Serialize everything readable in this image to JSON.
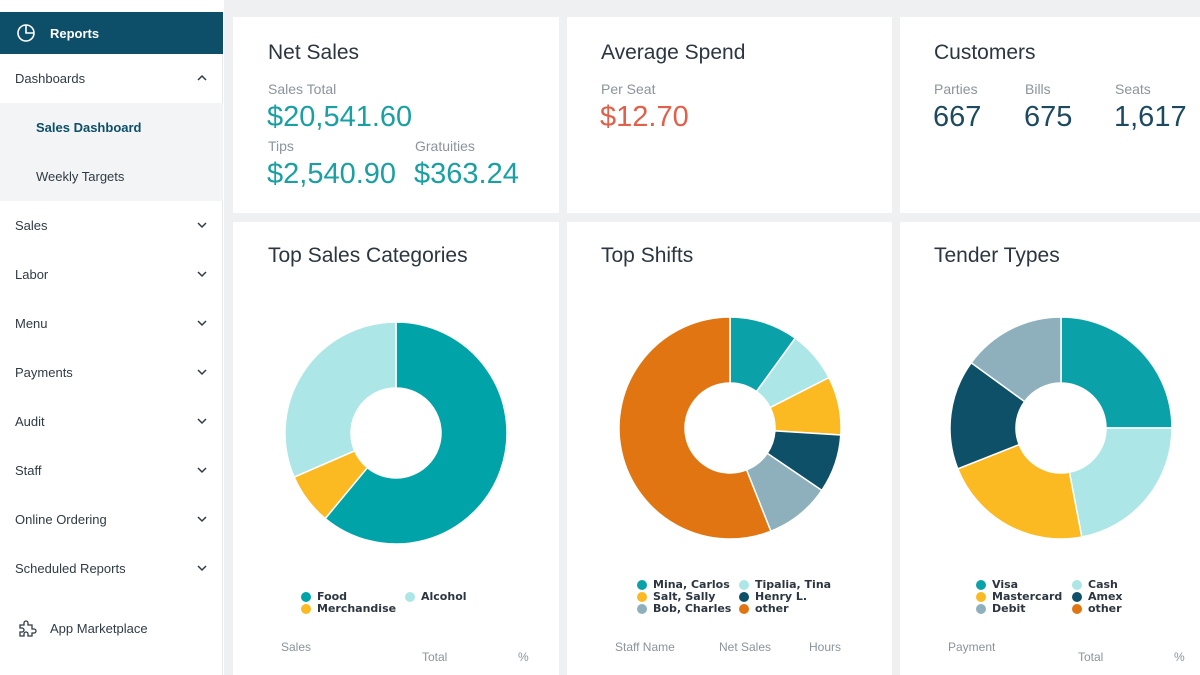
{
  "sidebar": {
    "reports_label": "Reports",
    "dashboards_label": "Dashboards",
    "sub_items": [
      "Sales Dashboard",
      "Weekly Targets"
    ],
    "items": [
      "Sales",
      "Labor",
      "Menu",
      "Payments",
      "Audit",
      "Staff",
      "Online Ordering",
      "Scheduled Reports"
    ],
    "marketplace_label": "App Marketplace"
  },
  "net_sales": {
    "title": "Net Sales",
    "sales_total_label": "Sales Total",
    "sales_total": "$20,541.60",
    "tips_label": "Tips",
    "tips": "$2,540.90",
    "gratuities_label": "Gratuities",
    "gratuities": "$363.24"
  },
  "average_spend": {
    "title": "Average Spend",
    "per_seat_label": "Per Seat",
    "per_seat": "$12.70"
  },
  "customers": {
    "title": "Customers",
    "parties_label": "Parties",
    "parties": "667",
    "bills_label": "Bills",
    "bills": "675",
    "seats_label": "Seats",
    "seats": "1,617"
  },
  "top_sales_categories": {
    "title": "Top Sales Categories",
    "table_headers": [
      "Sales",
      "Total",
      "%"
    ]
  },
  "top_shifts": {
    "title": "Top Shifts",
    "table_headers": [
      "Staff Name",
      "Net Sales",
      "Hours"
    ]
  },
  "tender_types": {
    "title": "Tender Types",
    "table_headers": [
      "Payment",
      "Total",
      "%"
    ]
  },
  "colors": {
    "brand": "#0d4f68",
    "teal": "#1aa0a3",
    "light_teal": "#ace6e6",
    "yellow": "#fbb922",
    "dark_blue": "#0d5068",
    "grey_blue": "#8eb0bd",
    "orange": "#e07512",
    "red": "#e0604a"
  },
  "chart_data": [
    {
      "type": "pie",
      "title": "Top Sales Categories",
      "categories": [
        "Food",
        "Merchandise",
        "Alcohol"
      ],
      "values": [
        61.0,
        7.5,
        31.5
      ],
      "colors": [
        "#00a3a8",
        "#fbb922",
        "#ace6e6"
      ]
    },
    {
      "type": "pie",
      "title": "Top Shifts",
      "categories": [
        "Mina, Carlos",
        "Tipalia, Tina",
        "Salt, Sally",
        "Henry L.",
        "Bob, Charles",
        "other"
      ],
      "values": [
        10.0,
        7.5,
        8.5,
        8.5,
        9.5,
        56.0
      ],
      "colors": [
        "#0aa2a8",
        "#ace6e6",
        "#fbb922",
        "#0d5068",
        "#8eb0bd",
        "#e07512"
      ]
    },
    {
      "type": "pie",
      "title": "Tender Types",
      "categories": [
        "Visa",
        "Cash",
        "Mastercard",
        "Amex",
        "Debit",
        "other"
      ],
      "values": [
        25.0,
        22.0,
        22.0,
        16.0,
        15.0,
        0.0
      ],
      "colors": [
        "#0aa2a8",
        "#ace6e6",
        "#fbb922",
        "#0d5068",
        "#8eb0bd",
        "#e07512"
      ]
    }
  ]
}
